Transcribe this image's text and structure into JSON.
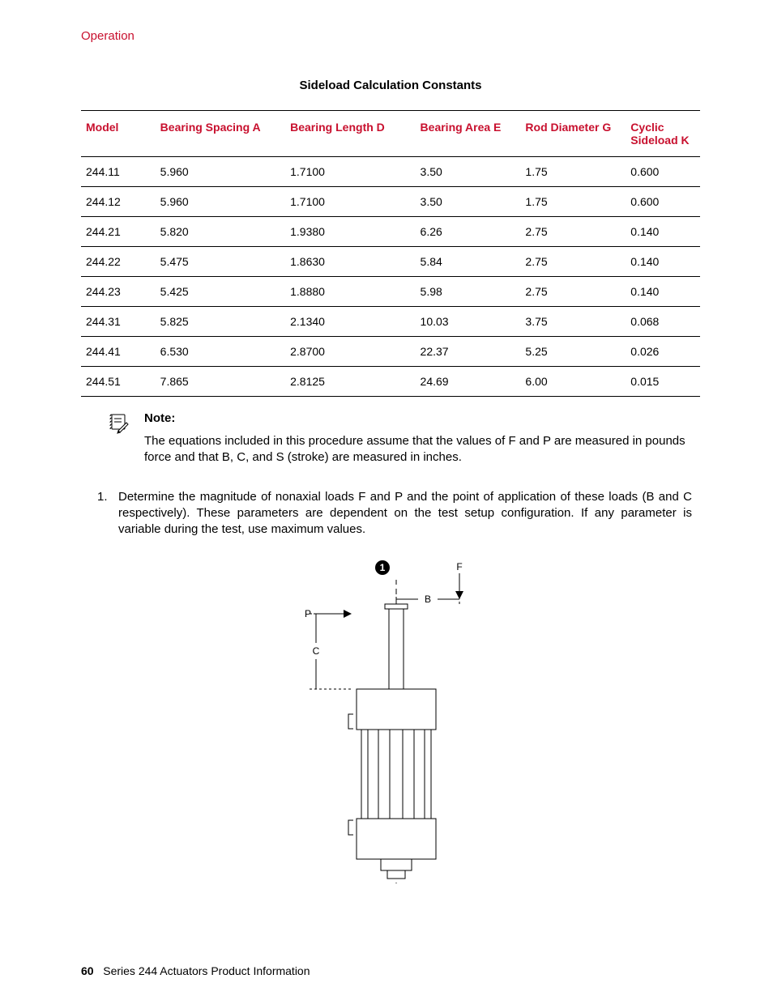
{
  "section_header": "Operation",
  "table_title": "Sideload Calculation Constants",
  "table": {
    "columns": [
      "Model",
      "Bearing Spacing A",
      "Bearing Length D",
      "Bearing Area E",
      "Rod Diameter G",
      "Cyclic Sideload K"
    ],
    "col_widths_pct": [
      12,
      21,
      21,
      17,
      17,
      22
    ],
    "rows": [
      [
        "244.11",
        "5.960",
        "1.7100",
        "3.50",
        "1.75",
        "0.600"
      ],
      [
        "244.12",
        "5.960",
        "1.7100",
        "3.50",
        "1.75",
        "0.600"
      ],
      [
        "244.21",
        "5.820",
        "1.9380",
        "6.26",
        "2.75",
        "0.140"
      ],
      [
        "244.22",
        "5.475",
        "1.8630",
        "5.84",
        "2.75",
        "0.140"
      ],
      [
        "244.23",
        "5.425",
        "1.8880",
        "5.98",
        "2.75",
        "0.140"
      ],
      [
        "244.31",
        "5.825",
        "2.1340",
        "10.03",
        "3.75",
        "0.068"
      ],
      [
        "244.41",
        "6.530",
        "2.8700",
        "22.37",
        "5.25",
        "0.026"
      ],
      [
        "244.51",
        "7.865",
        "2.8125",
        "24.69",
        "6.00",
        "0.015"
      ]
    ]
  },
  "note": {
    "label": "Note:",
    "text": "The equations included in this procedure assume that the values of F and P are measured in pounds force and that B, C, and S (stroke) are measured in inches."
  },
  "step1": {
    "num": "1.",
    "text": "Determine the magnitude of nonaxial loads F and P and the point of application of these loads (B and C respectively). These parameters are dependent on the test setup configuration. If any parameter is variable during the test, use maximum values."
  },
  "diagram": {
    "type": "engineering-diagram",
    "stroke": "#000000",
    "stroke_width": 1,
    "dash": "3,3",
    "badge_bg": "#000000",
    "badge_fg": "#ffffff",
    "badge_text": "1",
    "labels": {
      "F": "F",
      "P": "P",
      "B": "B",
      "C": "C"
    },
    "font_size": 11
  },
  "footer": {
    "page_num": "60",
    "title": "Series 244 Actuators Product Information"
  },
  "colors": {
    "accent": "#c8102e",
    "text": "#000000",
    "bg": "#ffffff"
  }
}
